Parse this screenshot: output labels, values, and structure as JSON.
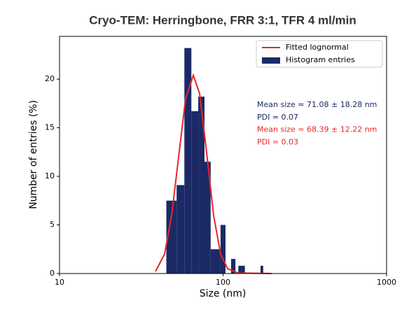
{
  "chart_data": {
    "type": "histogram",
    "title": "Cryo-TEM: Herringbone,  FRR 3:1, TFR 4 ml/min",
    "xlabel": "Size (nm)",
    "ylabel": "Number of entries (%)",
    "xscale": "log",
    "xlim": [
      10,
      1000
    ],
    "xticks": [
      10,
      100,
      1000
    ],
    "ylim": [
      0,
      24.4
    ],
    "yticks": [
      0,
      5,
      10,
      15,
      20
    ],
    "legend": "upper right",
    "bins": [
      45,
      52,
      58,
      64,
      70.5,
      77,
      84,
      96.5,
      103.5,
      112,
      119,
      124,
      136,
      169.5,
      176
    ],
    "series": [
      {
        "name": "Fitted lognormal",
        "type": "line",
        "color": "#e8262a",
        "x": [
          38.6,
          43.9,
          48.5,
          53.5,
          59.0,
          65.8,
          71.9,
          79.3,
          87.5,
          96.6,
          106.6,
          123.6,
          198.5
        ],
        "values": [
          0.2,
          2.0,
          6.0,
          12,
          18,
          20.4,
          18.5,
          12.5,
          6.0,
          2.0,
          0.5,
          0.05,
          0
        ]
      },
      {
        "name": "Histogram entries",
        "type": "histogram",
        "color": "#1b2a66",
        "values": [
          7.5,
          9.1,
          23.2,
          16.7,
          18.2,
          11.5,
          2.5,
          5.0,
          0,
          1.5,
          0,
          0.8,
          0,
          0.8
        ]
      }
    ],
    "annotations": [
      {
        "text": "Mean size = 71.08 ± 18.28 nm",
        "color": "#1b2a66"
      },
      {
        "text": "PDI = 0.07",
        "color": "#1b2a66"
      },
      {
        "text": "Mean size = 68.39 ± 12.22 nm",
        "color": "#e8262a"
      },
      {
        "text": "PDI = 0.03",
        "color": "#e8262a"
      }
    ]
  }
}
